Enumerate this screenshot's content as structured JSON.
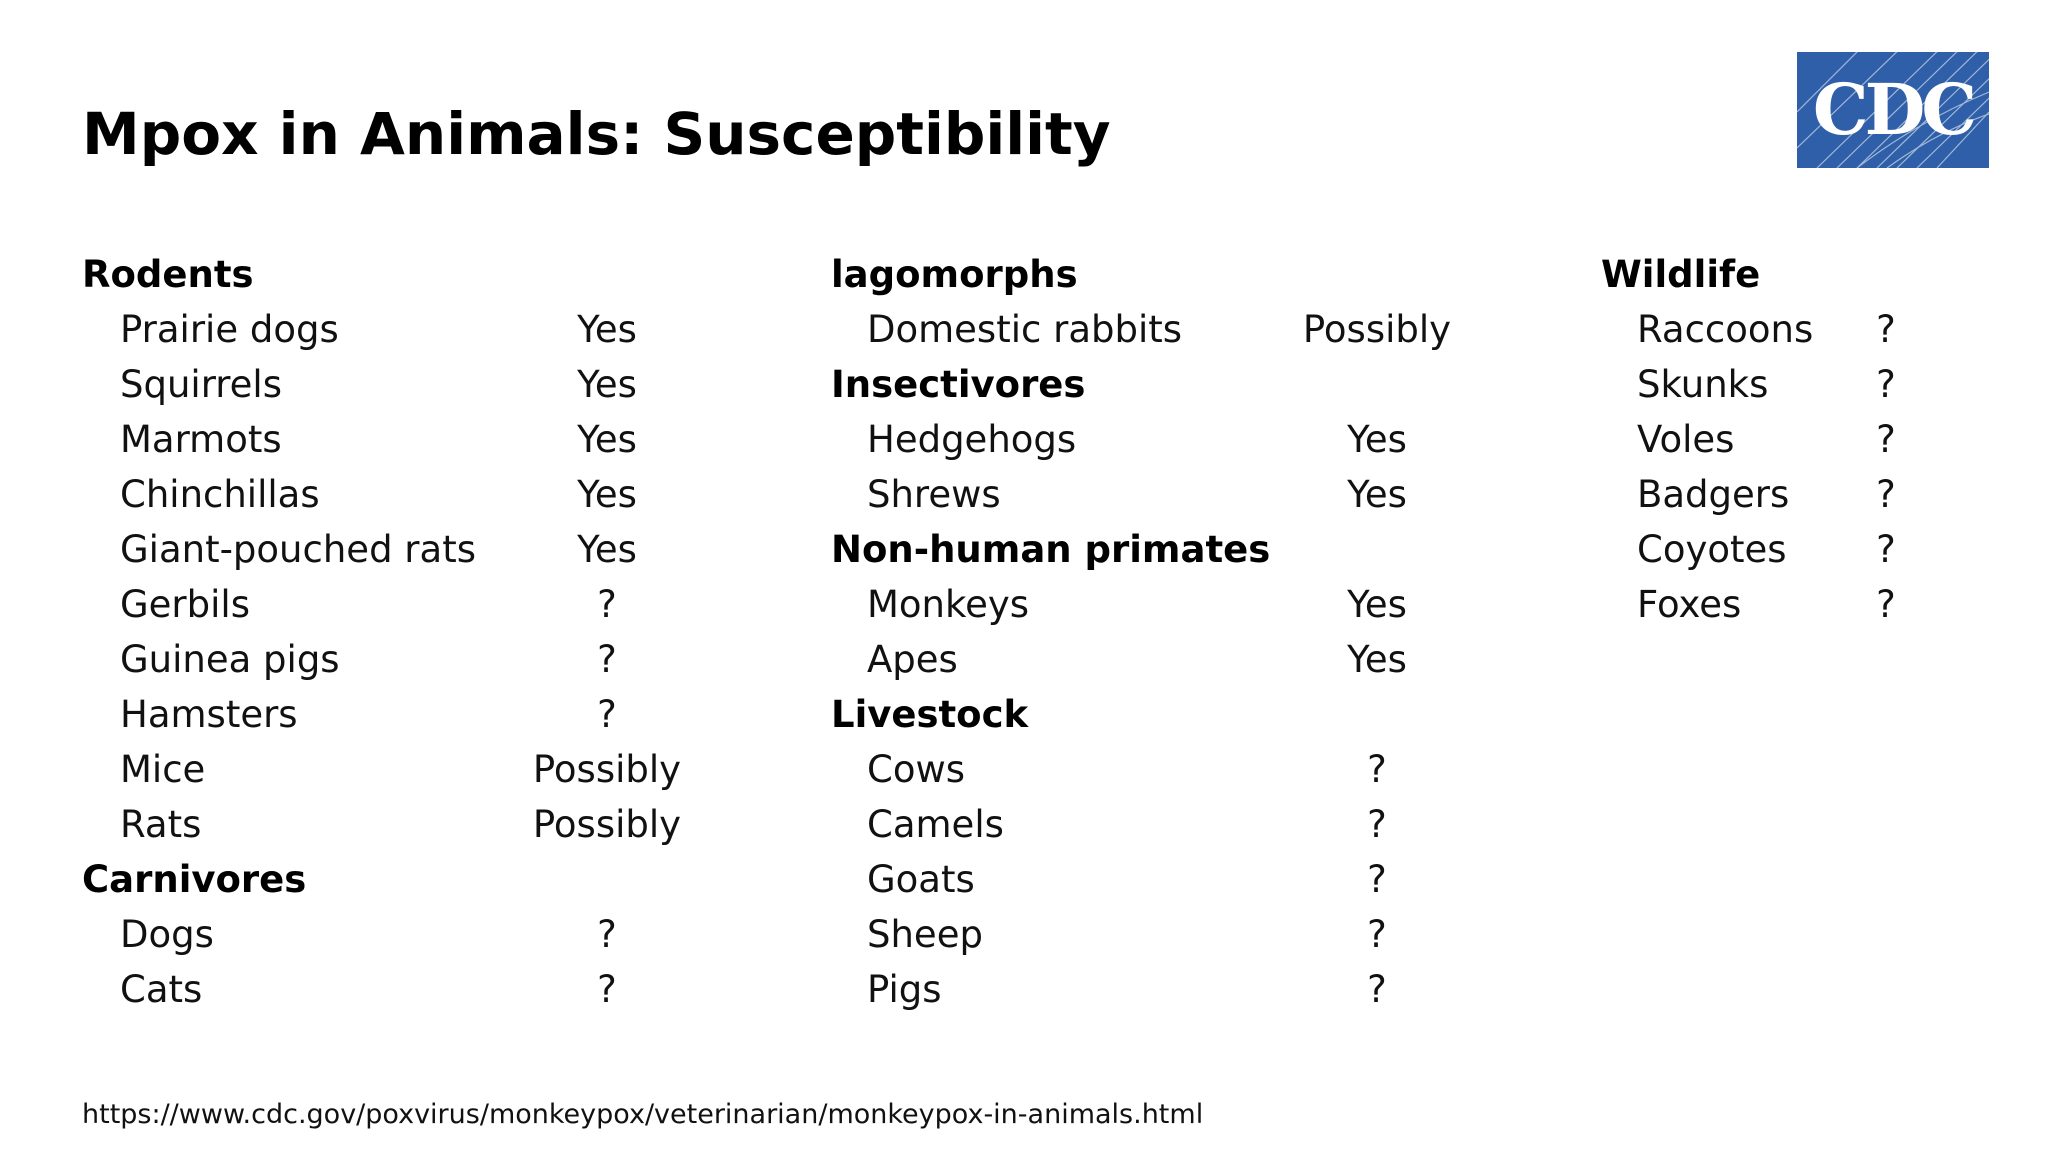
{
  "slide": {
    "title": "Mpox in Animals: Susceptibility",
    "logo_text": "CDC",
    "logo_color": "#2E5FA8",
    "source_url": "https://www.cdc.gov/poxvirus/monkeypox/veterinarian/monkeypox-in-animals.html"
  },
  "columns": [
    {
      "rows": [
        {
          "type": "heading",
          "label": "Rodents"
        },
        {
          "type": "item",
          "label": "Prairie dogs",
          "value": "Yes"
        },
        {
          "type": "item",
          "label": "Squirrels",
          "value": "Yes"
        },
        {
          "type": "item",
          "label": "Marmots",
          "value": "Yes"
        },
        {
          "type": "item",
          "label": "Chinchillas",
          "value": "Yes"
        },
        {
          "type": "item",
          "label": "Giant-pouched rats",
          "value": "Yes"
        },
        {
          "type": "item",
          "label": "Gerbils",
          "value": "?"
        },
        {
          "type": "item",
          "label": "Guinea pigs",
          "value": "?"
        },
        {
          "type": "item",
          "label": "Hamsters",
          "value": "?"
        },
        {
          "type": "item",
          "label": "Mice",
          "value": "Possibly"
        },
        {
          "type": "item",
          "label": "Rats",
          "value": "Possibly"
        },
        {
          "type": "heading",
          "label": "Carnivores"
        },
        {
          "type": "item",
          "label": "Dogs",
          "value": "?"
        },
        {
          "type": "item",
          "label": "Cats",
          "value": "?"
        }
      ]
    },
    {
      "rows": [
        {
          "type": "heading",
          "label": "lagomorphs"
        },
        {
          "type": "item",
          "label": "Domestic rabbits",
          "value": "Possibly"
        },
        {
          "type": "heading",
          "label": "Insectivores"
        },
        {
          "type": "item",
          "label": "Hedgehogs",
          "value": "Yes"
        },
        {
          "type": "item",
          "label": "Shrews",
          "value": "Yes"
        },
        {
          "type": "heading",
          "label": "Non-human primates"
        },
        {
          "type": "item",
          "label": "Monkeys",
          "value": "Yes"
        },
        {
          "type": "item",
          "label": "Apes",
          "value": "Yes"
        },
        {
          "type": "heading",
          "label": "Livestock"
        },
        {
          "type": "item",
          "label": "Cows",
          "value": "?"
        },
        {
          "type": "item",
          "label": "Camels",
          "value": "?"
        },
        {
          "type": "item",
          "label": "Goats",
          "value": "?"
        },
        {
          "type": "item",
          "label": "Sheep",
          "value": "?"
        },
        {
          "type": "item",
          "label": "Pigs",
          "value": "?"
        }
      ]
    },
    {
      "rows": [
        {
          "type": "heading",
          "label": "Wildlife"
        },
        {
          "type": "item",
          "label": "Raccoons",
          "value": "?"
        },
        {
          "type": "item",
          "label": "Skunks",
          "value": "?"
        },
        {
          "type": "item",
          "label": "Voles",
          "value": "?"
        },
        {
          "type": "item",
          "label": "Badgers",
          "value": "?"
        },
        {
          "type": "item",
          "label": "Coyotes",
          "value": "?"
        },
        {
          "type": "item",
          "label": "Foxes",
          "value": "?"
        }
      ]
    }
  ]
}
